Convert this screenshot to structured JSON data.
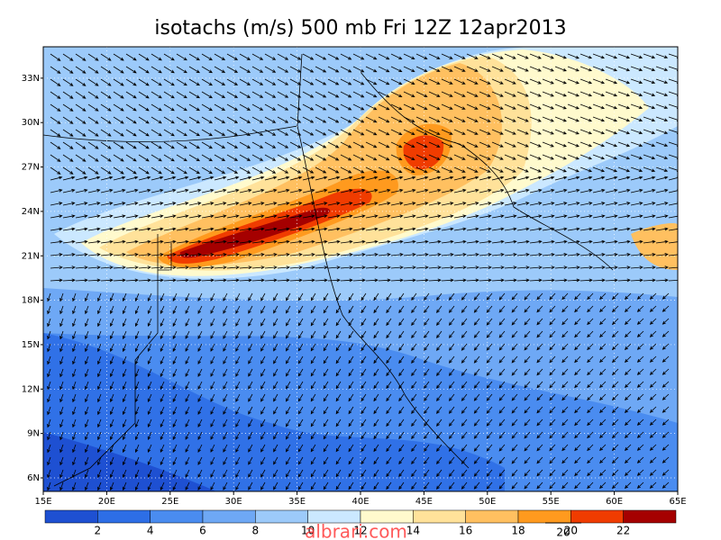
{
  "title": "isotachs (m/s) 500 mb Fri 12Z 12apr2013",
  "longitude_labels": [
    "15E",
    "20E",
    "25E",
    "30E",
    "35E",
    "40E",
    "45E",
    "50E",
    "55E",
    "60E",
    "65E"
  ],
  "latitude_labels": [
    "6N",
    "9N",
    "12N",
    "15N",
    "18N",
    "21N",
    "24N",
    "27N",
    "30N",
    "33N"
  ],
  "colorbar": {
    "labels": [
      2,
      4,
      6,
      8,
      10,
      12,
      14,
      16,
      18,
      20,
      22
    ],
    "colors": [
      "#1e50d2",
      "#2d6ee6",
      "#4a8cf0",
      "#6ea8f5",
      "#9ccafa",
      "#cbe8ff",
      "#fffacd",
      "#ffe29a",
      "#ffc060",
      "#ff9a1e",
      "#f03c00",
      "#a50000"
    ]
  },
  "reference_vector_label": "20",
  "watermark": "albrari.com"
}
